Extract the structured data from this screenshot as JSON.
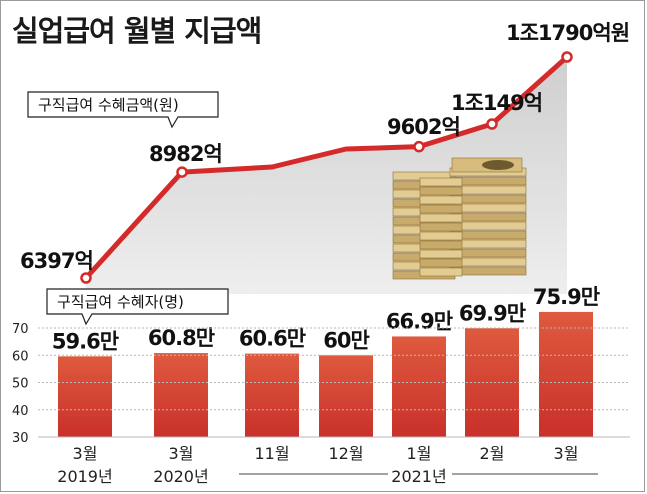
{
  "title": "실업급여 월별 지급액",
  "chart_data": [
    {
      "type": "line",
      "title": "구직급여 수혜금액(원)",
      "categories": [
        "3월 2019년",
        "3월 2020년",
        "11월",
        "12월",
        "1월 2021년",
        "2월",
        "3월"
      ],
      "values": [
        6397,
        8982,
        null,
        null,
        9602,
        10149,
        11790
      ],
      "value_labels": [
        "6397억",
        "8982억",
        "",
        "",
        "9602억",
        "1조149억",
        "1조1790억원"
      ],
      "unit": "억원"
    },
    {
      "type": "bar",
      "title": "구직급여 수혜자(명)",
      "categories": [
        "3월",
        "3월",
        "11월",
        "12월",
        "1월",
        "2월",
        "3월"
      ],
      "year_labels": [
        "2019년",
        "2020년",
        "",
        "",
        "2021년",
        "",
        ""
      ],
      "values": [
        59.6,
        60.8,
        60.6,
        60,
        66.9,
        69.9,
        75.9
      ],
      "value_labels": [
        "59.6만",
        "60.8만",
        "60.6만",
        "60만",
        "66.9만",
        "69.9만",
        "75.9만"
      ],
      "yticks": [
        30,
        40,
        50,
        60,
        70
      ],
      "ylim": [
        30,
        78
      ],
      "bar_color": "#d9452c",
      "unit": "만"
    }
  ]
}
